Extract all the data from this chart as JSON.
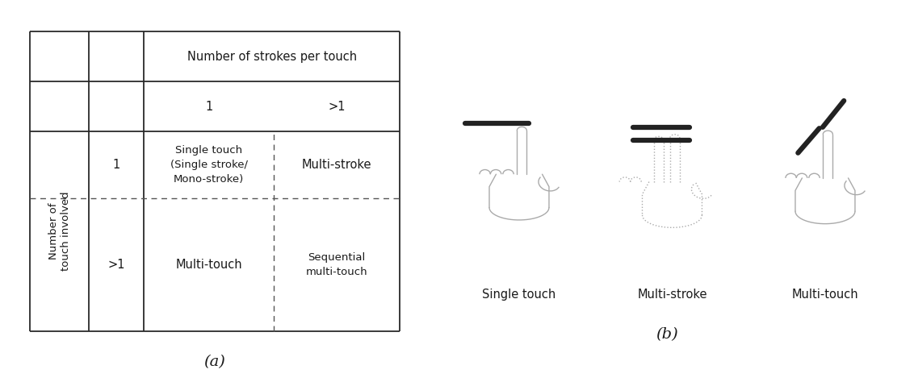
{
  "bg_color": "#ffffff",
  "table": {
    "col_header": "Number of strokes per touch",
    "col_sub": [
      "1",
      ">1"
    ],
    "row_header": "Number of\ntouch involved",
    "row_sub": [
      "1",
      ">1"
    ],
    "cells": [
      [
        "Single touch\n(Single stroke/\nMono-stroke)",
        "Multi-stroke"
      ],
      [
        "Multi-touch",
        "Sequential\nmulti-touch"
      ]
    ]
  },
  "label_a": "(a)",
  "label_b": "(b)",
  "gesture_labels": [
    "Single touch",
    "Multi-stroke",
    "Multi-touch"
  ],
  "line_color": "#2a2a2a",
  "text_color": "#1a1a1a",
  "dashed_color": "#555555",
  "hand_color": "#aaaaaa",
  "stroke_color": "#222222"
}
